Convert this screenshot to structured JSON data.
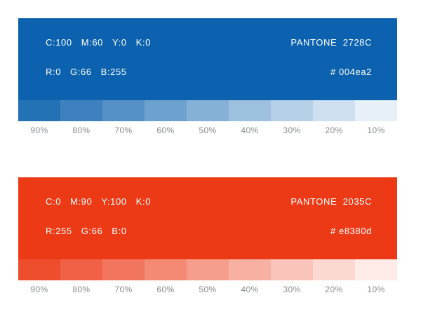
{
  "page": {
    "background": "#ffffff",
    "card_text_color": "#ffffff",
    "tint_label_color": "#87898b"
  },
  "cards": [
    {
      "id": "pantone-2728c",
      "display_hex": "#0c62ae",
      "cmyk_tokens": [
        "C:100",
        "M:60",
        "Y:0",
        "K:0"
      ],
      "rgb_tokens": [
        "R:0",
        "G:66",
        "B:255"
      ],
      "pantone_label": "PANTONE  2728C",
      "hex_label": "# 004ea2",
      "tint_percents": [
        90,
        80,
        70,
        60,
        50,
        40,
        30,
        20,
        10
      ],
      "tint_labels": [
        "90%",
        "80%",
        "70%",
        "60%",
        "50%",
        "40%",
        "30%",
        "20%",
        "10%"
      ]
    },
    {
      "id": "pantone-2035c",
      "display_hex": "#ec3a17",
      "cmyk_tokens": [
        "C:0",
        "M:90",
        "Y:100",
        "K:0"
      ],
      "rgb_tokens": [
        "R:255",
        "G:66",
        "B:0"
      ],
      "pantone_label": "PANTONE  2035C",
      "hex_label": "# e8380d",
      "tint_percents": [
        90,
        80,
        70,
        60,
        50,
        40,
        30,
        20,
        10
      ],
      "tint_labels": [
        "90%",
        "80%",
        "70%",
        "60%",
        "50%",
        "40%",
        "30%",
        "20%",
        "10%"
      ]
    }
  ]
}
